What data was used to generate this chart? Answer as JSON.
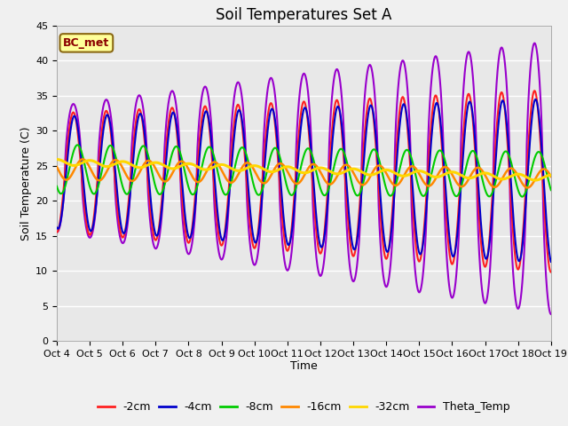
{
  "title": "Soil Temperatures Set A",
  "xlabel": "Time",
  "ylabel": "Soil Temperature (C)",
  "ylim": [
    0,
    45
  ],
  "xlim_days": [
    4,
    19
  ],
  "xtick_labels": [
    "Oct 4",
    "Oct 5",
    "Oct 6",
    "Oct 7",
    "Oct 8",
    "Oct 9",
    "Oct 10",
    "Oct 11",
    "Oct 12",
    "Oct 13",
    "Oct 14",
    "Oct 15",
    "Oct 16",
    "Oct 17",
    "Oct 18",
    "Oct 19"
  ],
  "annotation_text": "BC_met",
  "annotation_fg": "#8B0000",
  "annotation_bg": "#FFFF99",
  "annotation_border": "#8B6914",
  "series_neg2cm": {
    "color": "#FF2020",
    "lw": 1.5,
    "label": "-2cm"
  },
  "series_neg4cm": {
    "color": "#0000CC",
    "lw": 1.5,
    "label": "-4cm"
  },
  "series_neg8cm": {
    "color": "#00CC00",
    "lw": 1.5,
    "label": "-8cm"
  },
  "series_neg16cm": {
    "color": "#FF8800",
    "lw": 1.8,
    "label": "-16cm"
  },
  "series_neg32cm": {
    "color": "#FFD700",
    "lw": 2.2,
    "label": "-32cm"
  },
  "series_theta": {
    "color": "#9900CC",
    "lw": 1.5,
    "label": "Theta_Temp"
  },
  "plot_bg": "#E8E8E8",
  "grid_color": "#FFFFFF",
  "fig_bg": "#F0F0F0",
  "title_fontsize": 12,
  "ylabel_fontsize": 9,
  "xlabel_fontsize": 9,
  "tick_fontsize": 8,
  "legend_fontsize": 9
}
